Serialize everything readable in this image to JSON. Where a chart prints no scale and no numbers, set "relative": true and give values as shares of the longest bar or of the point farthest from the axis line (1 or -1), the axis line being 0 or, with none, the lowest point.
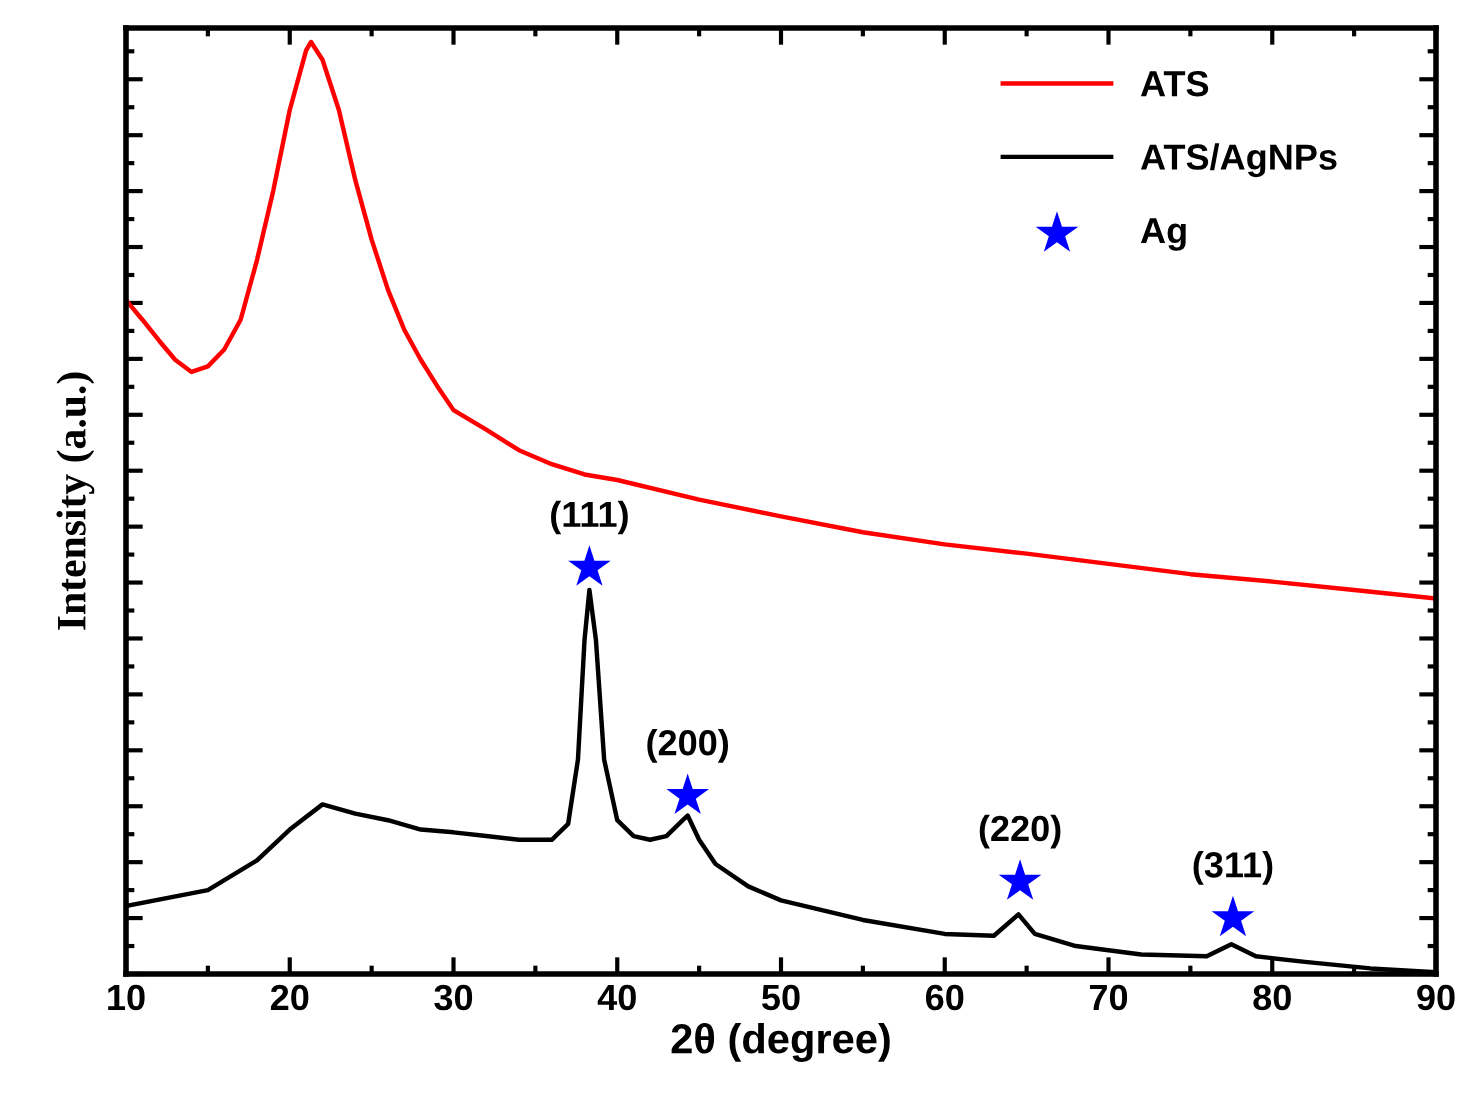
{
  "chart_data": {
    "type": "line",
    "xlabel": "2θ (degree)",
    "ylabel": "Intensity (a.u.)",
    "relative": true,
    "xlim": [
      10,
      90
    ],
    "xticks": [
      10,
      20,
      30,
      40,
      50,
      60,
      70,
      80,
      90
    ],
    "tick_labels": "x",
    "legend": "top right",
    "grid": false,
    "series": [
      {
        "name": "ATS",
        "color": "#ff0000",
        "x": [
          10,
          11,
          12,
          13,
          14,
          15,
          16,
          17,
          18,
          19,
          20,
          21,
          21.3,
          22,
          23,
          24,
          25,
          26,
          27,
          28,
          29,
          30,
          32,
          34,
          36,
          38,
          40,
          45,
          50,
          55,
          60,
          65,
          70,
          75,
          80,
          85,
          90
        ],
        "values": [
          0.723,
          0.702,
          0.68,
          0.659,
          0.646,
          0.652,
          0.67,
          0.702,
          0.766,
          0.841,
          0.927,
          0.991,
          1,
          0.981,
          0.927,
          0.852,
          0.788,
          0.734,
          0.691,
          0.659,
          0.631,
          0.605,
          0.584,
          0.562,
          0.547,
          0.536,
          0.53,
          0.509,
          0.491,
          0.474,
          0.461,
          0.451,
          0.44,
          0.429,
          0.421,
          0.412,
          0.403
        ]
      },
      {
        "name": "ATS/AgNPs",
        "color": "#000000",
        "x": [
          10,
          15,
          18,
          20,
          22,
          24,
          26,
          28,
          30,
          32,
          34,
          36,
          37,
          37.6,
          38,
          38.3,
          38.7,
          39.2,
          40,
          41,
          42,
          43,
          44,
          44.3,
          45,
          46,
          48,
          50,
          55,
          60,
          63,
          64.5,
          65.5,
          68,
          72,
          76,
          77.5,
          79,
          82,
          86,
          90
        ],
        "values": [
          0.073,
          0.09,
          0.122,
          0.155,
          0.182,
          0.172,
          0.165,
          0.155,
          0.152,
          0.148,
          0.144,
          0.144,
          0.161,
          0.23,
          0.358,
          0.412,
          0.358,
          0.23,
          0.165,
          0.148,
          0.144,
          0.148,
          0.165,
          0.17,
          0.144,
          0.118,
          0.094,
          0.079,
          0.058,
          0.043,
          0.041,
          0.064,
          0.043,
          0.03,
          0.021,
          0.019,
          0.032,
          0.019,
          0.013,
          0.006,
          0.002
        ]
      },
      {
        "name": "Ag",
        "color": "#0000ff",
        "type": "scatter",
        "marker": "star",
        "x": [
          38.3,
          44.3,
          64.6,
          77.6
        ],
        "values": [
          0.436,
          0.191,
          0.099,
          0.06
        ]
      }
    ],
    "annotations": [
      {
        "text": "(111)",
        "x": 38.3,
        "y": 0.436
      },
      {
        "text": "(200)",
        "x": 44.3,
        "y": 0.191
      },
      {
        "text": "(220)",
        "x": 64.6,
        "y": 0.099
      },
      {
        "text": "(311)",
        "x": 77.6,
        "y": 0.06
      }
    ]
  }
}
